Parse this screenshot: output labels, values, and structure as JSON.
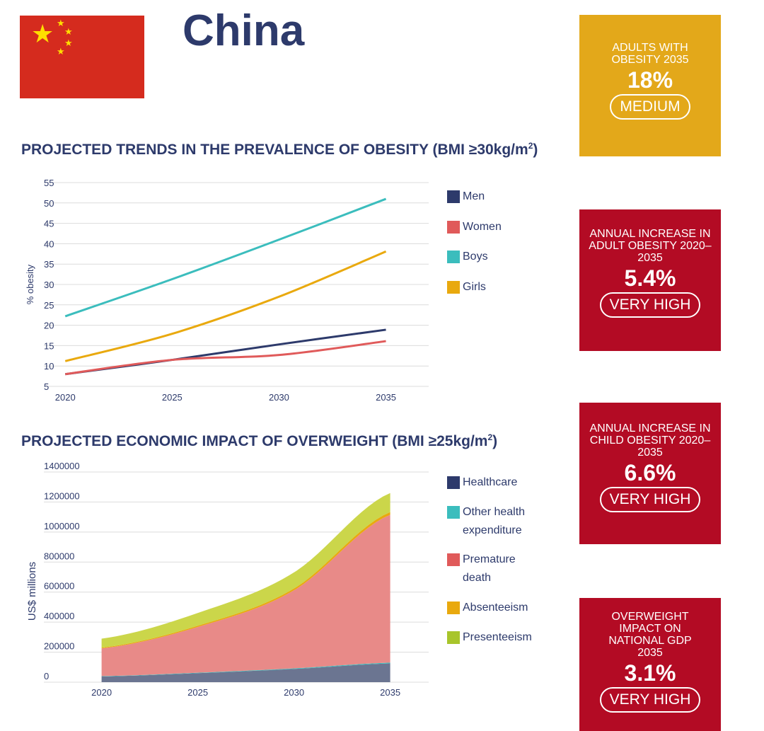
{
  "country": "China",
  "colors": {
    "navy": "#2d3a6b",
    "flag_red": "#d52b1e",
    "flag_star": "#ffde00",
    "card_gold": "#e3a81a",
    "card_red": "#b30b24"
  },
  "section1": {
    "title": "PROJECTED TRENDS IN THE PREVALENCE OF OBESITY (BMI ≥30kg/m",
    "title_sup": "2",
    "title_end": ")"
  },
  "section2": {
    "title": "PROJECTED ECONOMIC IMPACT OF OVERWEIGHT (BMI ≥25kg/m",
    "title_sup": "2",
    "title_end": ")"
  },
  "cards": [
    {
      "label": "ADULTS WITH OBESITY 2035",
      "value": "18%",
      "rating": "MEDIUM",
      "color": "#e3a81a"
    },
    {
      "label": "ANNUAL INCREASE IN ADULT OBESITY 2020–2035",
      "value": "5.4%",
      "rating": "VERY HIGH",
      "color": "#b30b24"
    },
    {
      "label": "ANNUAL INCREASE IN CHILD OBESITY 2020–2035",
      "value": "6.6%",
      "rating": "VERY HIGH",
      "color": "#b30b24"
    },
    {
      "label": "OVERWEIGHT IMPACT ON NATIONAL GDP 2035",
      "value": "3.1%",
      "rating": "VERY HIGH",
      "color": "#b30b24"
    }
  ],
  "chart_data": [
    {
      "type": "line",
      "ylabel": "% obesity",
      "xlabel": "",
      "ylim": [
        5,
        55
      ],
      "xlim": [
        2019,
        2037
      ],
      "yticks": [
        5,
        10,
        15,
        20,
        25,
        30,
        35,
        40,
        45,
        50,
        55
      ],
      "xticks": [
        2020,
        2025,
        2030,
        2035
      ],
      "grid": true,
      "legend_position": "right",
      "x": [
        2020,
        2025,
        2030,
        2035
      ],
      "series": [
        {
          "name": "Men",
          "color": "#2d3a6b",
          "values": [
            8,
            11.5,
            15.3,
            18.9
          ]
        },
        {
          "name": "Women",
          "color": "#e05a5a",
          "values": [
            8,
            11.5,
            12.7,
            16.1
          ]
        },
        {
          "name": "Boys",
          "color": "#3bbdbd",
          "values": [
            22.2,
            31.3,
            41,
            51
          ]
        },
        {
          "name": "Girls",
          "color": "#e9a90e",
          "values": [
            11.2,
            17.9,
            27,
            38.1
          ]
        }
      ]
    },
    {
      "type": "area",
      "stacked": true,
      "ylabel": "US$ millions",
      "xlabel": "",
      "ylim": [
        0,
        1400000
      ],
      "xlim": [
        2017,
        2037
      ],
      "yticks": [
        0,
        200000,
        400000,
        600000,
        800000,
        1000000,
        1200000,
        1400000
      ],
      "xticks": [
        2020,
        2025,
        2030,
        2035
      ],
      "grid": true,
      "legend_position": "right",
      "x": [
        2020,
        2025,
        2030,
        2035
      ],
      "series": [
        {
          "name": "Healthcare",
          "color": "#6b7591",
          "values": [
            38000,
            60000,
            88000,
            125000
          ]
        },
        {
          "name": "Other health expenditure",
          "color": "#3bbdbd",
          "values": [
            2000,
            3000,
            4000,
            5000
          ]
        },
        {
          "name": "Premature death",
          "color": "#e88a88",
          "values": [
            185000,
            305000,
            520000,
            985000
          ]
        },
        {
          "name": "Absenteeism",
          "color": "#e9a90e",
          "values": [
            5000,
            8000,
            12000,
            18000
          ]
        },
        {
          "name": "Presenteeism",
          "color": "#cbd64a",
          "values": [
            60000,
            85000,
            107000,
            127000
          ]
        }
      ],
      "legend_colors": [
        "#2d3a6b",
        "#3bbdbd",
        "#e05a5a",
        "#e9a90e",
        "#a8c52b"
      ]
    }
  ]
}
